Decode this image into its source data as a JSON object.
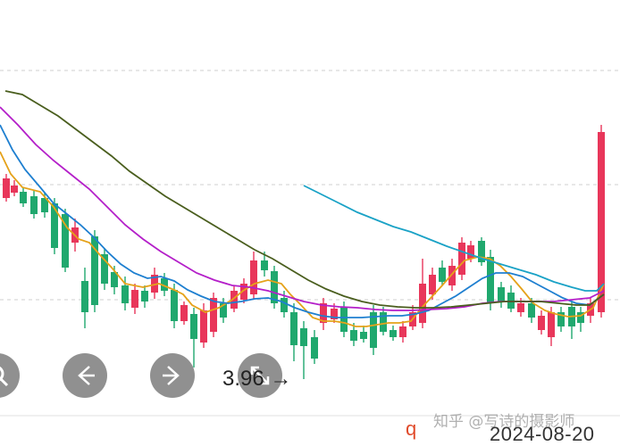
{
  "chart_data": {
    "type": "candlestick",
    "ma_colors": [
      "#e5a21a",
      "#1e7fd0",
      "#b41fc9",
      "#4a5e1e"
    ],
    "right_line_color": "#1aa2c6",
    "up_color": "#e8365a",
    "down_color": "#20a86e",
    "grid": "dashed horizontal"
  },
  "controls": {
    "zoom_icon": "zoom-in-icon",
    "prev_icon": "arrow-left-icon",
    "next_icon": "arrow-right-icon",
    "expand_icon": "expand-icon"
  },
  "price_label": "3.96 →",
  "q_label": "q",
  "date_label": "2024-08-20",
  "watermark": "知乎 @写诗的摄影师"
}
